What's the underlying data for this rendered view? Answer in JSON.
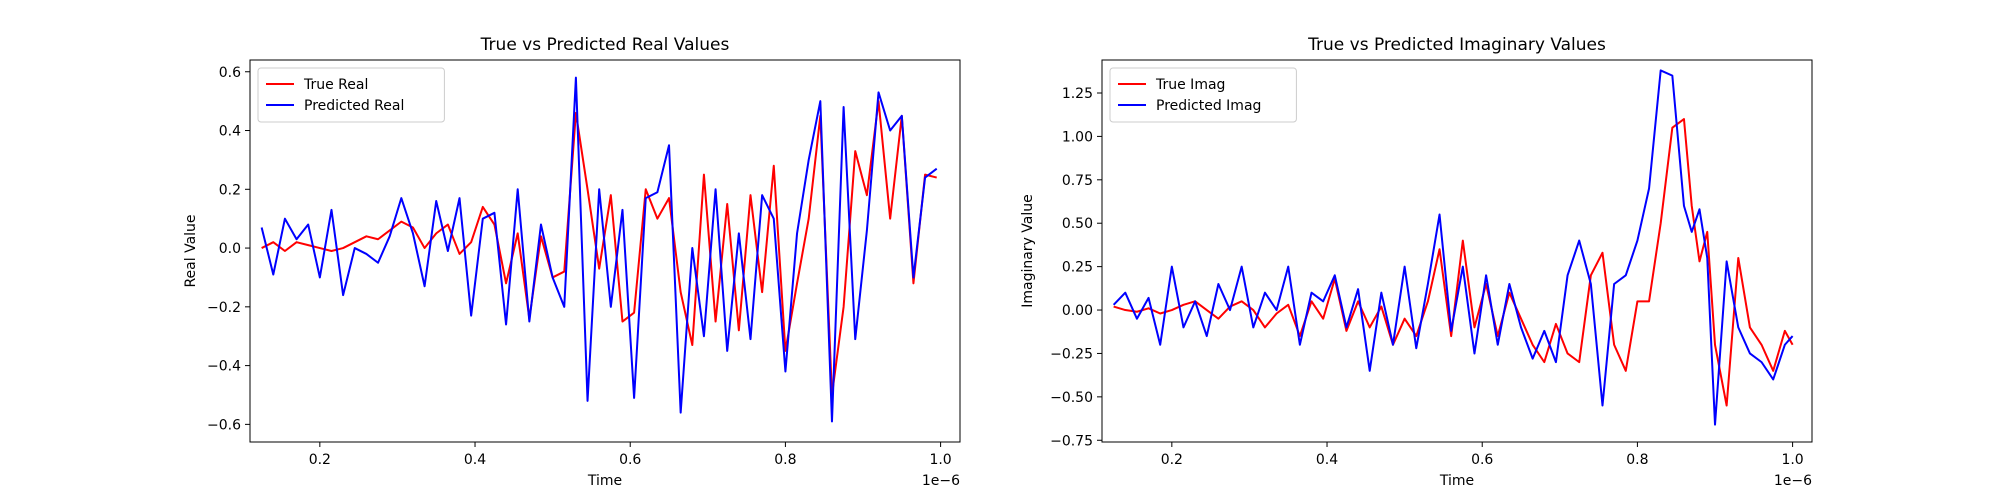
{
  "chart_data": [
    {
      "type": "line",
      "title": "True vs Predicted Real Values",
      "xlabel": "Time",
      "ylabel": "Real Value",
      "x_offset_label": "1e−6",
      "xlim": [
        0.11,
        1.025
      ],
      "ylim": [
        -0.66,
        0.64
      ],
      "xticks": [
        0.2,
        0.4,
        0.6,
        0.8,
        1.0
      ],
      "xtick_labels": [
        "0.2",
        "0.4",
        "0.6",
        "0.8",
        "1.0"
      ],
      "yticks": [
        -0.6,
        -0.4,
        -0.2,
        0.0,
        0.2,
        0.4,
        0.6
      ],
      "ytick_labels": [
        "−0.6",
        "−0.4",
        "−0.2",
        "0.0",
        "0.2",
        "0.4",
        "0.6"
      ],
      "legend_position": "top-left",
      "grid": false,
      "x": [
        0.125,
        0.14,
        0.155,
        0.17,
        0.185,
        0.2,
        0.215,
        0.23,
        0.245,
        0.26,
        0.275,
        0.29,
        0.305,
        0.32,
        0.335,
        0.35,
        0.365,
        0.38,
        0.395,
        0.41,
        0.425,
        0.44,
        0.455,
        0.47,
        0.485,
        0.5,
        0.515,
        0.53,
        0.545,
        0.56,
        0.575,
        0.59,
        0.605,
        0.62,
        0.635,
        0.65,
        0.665,
        0.68,
        0.695,
        0.71,
        0.725,
        0.74,
        0.755,
        0.77,
        0.785,
        0.8,
        0.815,
        0.83,
        0.845,
        0.86,
        0.875,
        0.89,
        0.905,
        0.92,
        0.935,
        0.95,
        0.965,
        0.98,
        0.995
      ],
      "series": [
        {
          "name": "True Real",
          "color": "#ff0000",
          "values": [
            0.0,
            0.02,
            -0.01,
            0.02,
            0.01,
            0.0,
            -0.01,
            0.0,
            0.02,
            0.04,
            0.03,
            0.06,
            0.09,
            0.07,
            0.0,
            0.05,
            0.08,
            -0.02,
            0.02,
            0.14,
            0.08,
            -0.12,
            0.05,
            -0.24,
            0.04,
            -0.1,
            -0.08,
            0.46,
            0.2,
            -0.07,
            0.18,
            -0.25,
            -0.22,
            0.2,
            0.1,
            0.17,
            -0.15,
            -0.33,
            0.25,
            -0.25,
            0.15,
            -0.28,
            0.18,
            -0.15,
            0.28,
            -0.35,
            -0.12,
            0.1,
            0.45,
            -0.5,
            -0.2,
            0.33,
            0.18,
            0.5,
            0.1,
            0.45,
            -0.12,
            0.25,
            0.24
          ]
        },
        {
          "name": "Predicted Real",
          "color": "#0000ff",
          "values": [
            0.07,
            -0.09,
            0.1,
            0.03,
            0.08,
            -0.1,
            0.13,
            -0.16,
            0.0,
            -0.02,
            -0.05,
            0.04,
            0.17,
            0.05,
            -0.13,
            0.16,
            -0.01,
            0.17,
            -0.23,
            0.1,
            0.12,
            -0.26,
            0.2,
            -0.25,
            0.08,
            -0.1,
            -0.2,
            0.58,
            -0.52,
            0.2,
            -0.2,
            0.13,
            -0.51,
            0.17,
            0.19,
            0.35,
            -0.56,
            0.0,
            -0.3,
            0.2,
            -0.35,
            0.05,
            -0.31,
            0.18,
            0.1,
            -0.42,
            0.05,
            0.3,
            0.5,
            -0.59,
            0.48,
            -0.31,
            0.06,
            0.53,
            0.4,
            0.45,
            -0.1,
            0.24,
            0.27
          ]
        }
      ]
    },
    {
      "type": "line",
      "title": "True vs Predicted Imaginary Values",
      "xlabel": "Time",
      "ylabel": "Imaginary Value",
      "x_offset_label": "1e−6",
      "xlim": [
        0.11,
        1.025
      ],
      "ylim": [
        -0.76,
        1.44
      ],
      "xticks": [
        0.2,
        0.4,
        0.6,
        0.8,
        1.0
      ],
      "xtick_labels": [
        "0.2",
        "0.4",
        "0.6",
        "0.8",
        "1.0"
      ],
      "yticks": [
        -0.75,
        -0.5,
        -0.25,
        0.0,
        0.25,
        0.5,
        0.75,
        1.0,
        1.25
      ],
      "ytick_labels": [
        "−0.75",
        "−0.50",
        "−0.25",
        "0.00",
        "0.25",
        "0.50",
        "0.75",
        "1.00",
        "1.25"
      ],
      "legend_position": "top-left",
      "grid": false,
      "x": [
        0.125,
        0.14,
        0.155,
        0.17,
        0.185,
        0.2,
        0.215,
        0.23,
        0.245,
        0.26,
        0.275,
        0.29,
        0.305,
        0.32,
        0.335,
        0.35,
        0.365,
        0.38,
        0.395,
        0.41,
        0.425,
        0.44,
        0.455,
        0.47,
        0.485,
        0.5,
        0.515,
        0.53,
        0.545,
        0.56,
        0.575,
        0.59,
        0.605,
        0.62,
        0.635,
        0.65,
        0.665,
        0.68,
        0.695,
        0.71,
        0.725,
        0.74,
        0.755,
        0.77,
        0.785,
        0.8,
        0.815,
        0.83,
        0.845,
        0.86,
        0.87,
        0.88,
        0.89,
        0.9,
        0.915,
        0.93,
        0.945,
        0.96,
        0.975,
        0.99,
        1.0
      ],
      "series": [
        {
          "name": "True Imag",
          "color": "#ff0000",
          "values": [
            0.02,
            0.0,
            -0.01,
            0.01,
            -0.02,
            0.0,
            0.03,
            0.05,
            0.0,
            -0.05,
            0.02,
            0.05,
            0.0,
            -0.1,
            -0.02,
            0.03,
            -0.15,
            0.05,
            -0.05,
            0.18,
            -0.12,
            0.05,
            -0.1,
            0.02,
            -0.2,
            -0.05,
            -0.15,
            0.05,
            0.35,
            -0.15,
            0.4,
            -0.1,
            0.15,
            -0.15,
            0.1,
            -0.05,
            -0.2,
            -0.3,
            -0.08,
            -0.25,
            -0.3,
            0.2,
            0.33,
            -0.2,
            -0.35,
            0.05,
            0.05,
            0.5,
            1.05,
            1.1,
            0.6,
            0.28,
            0.45,
            -0.2,
            -0.55,
            0.3,
            -0.1,
            -0.2,
            -0.35,
            -0.12,
            -0.2
          ]
        },
        {
          "name": "Predicted Imag",
          "color": "#0000ff",
          "values": [
            0.03,
            0.1,
            -0.05,
            0.07,
            -0.2,
            0.25,
            -0.1,
            0.05,
            -0.15,
            0.15,
            0.0,
            0.25,
            -0.1,
            0.1,
            0.0,
            0.25,
            -0.2,
            0.1,
            0.05,
            0.2,
            -0.1,
            0.12,
            -0.35,
            0.1,
            -0.2,
            0.25,
            -0.22,
            0.15,
            0.55,
            -0.12,
            0.25,
            -0.25,
            0.2,
            -0.2,
            0.15,
            -0.1,
            -0.28,
            -0.12,
            -0.3,
            0.2,
            0.4,
            0.15,
            -0.55,
            0.15,
            0.2,
            0.4,
            0.7,
            1.38,
            1.35,
            0.6,
            0.45,
            0.58,
            0.3,
            -0.66,
            0.28,
            -0.1,
            -0.25,
            -0.3,
            -0.4,
            -0.2,
            -0.15
          ]
        }
      ]
    }
  ]
}
